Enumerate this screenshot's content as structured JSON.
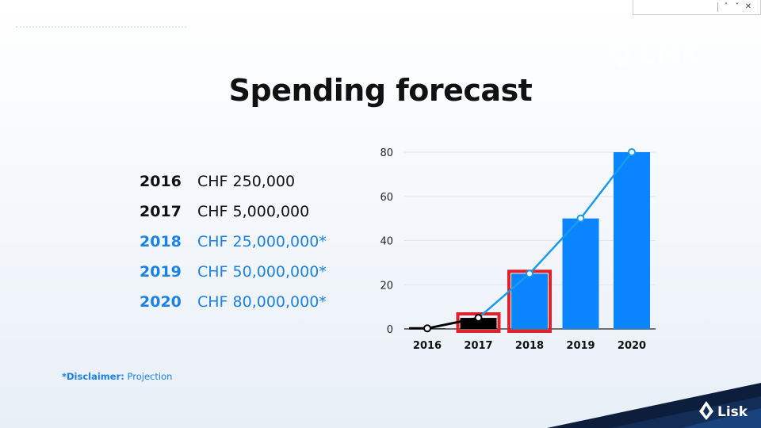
{
  "find_bar": {
    "prev_icon": "chevron-up-icon",
    "next_icon": "chevron-down-icon",
    "close_icon": "close-icon",
    "prev_glyph": "˄",
    "next_glyph": "˅",
    "close_glyph": "✕"
  },
  "brand": {
    "name": "Lisk",
    "accent": "#1a82e6",
    "dark": "#0c1e3c"
  },
  "slide": {
    "title": "Spending forecast",
    "rows": [
      {
        "year": "2016",
        "amount": "CHF 250,000",
        "color": "#111111"
      },
      {
        "year": "2017",
        "amount": "CHF 5,000,000",
        "color": "#111111"
      },
      {
        "year": "2018",
        "amount": "CHF 25,000,000*",
        "color": "#1a82e6"
      },
      {
        "year": "2019",
        "amount": "CHF 50,000,000*",
        "color": "#1a82e6"
      },
      {
        "year": "2020",
        "amount": "CHF 80,000,000*",
        "color": "#1a82e6"
      }
    ],
    "disclaimer_label": "*Disclaimer:",
    "disclaimer_text": " Projection"
  },
  "chart_data": {
    "type": "bar",
    "categories": [
      "2016",
      "2017",
      "2018",
      "2019",
      "2020"
    ],
    "values": [
      0.25,
      5,
      25,
      50,
      80
    ],
    "line_values": [
      0.25,
      5,
      25,
      50,
      80
    ],
    "ylim": [
      0,
      80
    ],
    "yticks": [
      "0",
      "20",
      "40",
      "60",
      "80"
    ],
    "bar_colors": [
      "#000000",
      "#000000",
      "#0a84ff",
      "#0a84ff",
      "#0a84ff"
    ],
    "line_color_actual": "#000000",
    "line_color_forecast": "#1a9be8",
    "highlighted_categories": [
      "2017",
      "2018"
    ],
    "highlight_color": "#e0202a",
    "title": "",
    "xlabel": "",
    "ylabel": ""
  }
}
